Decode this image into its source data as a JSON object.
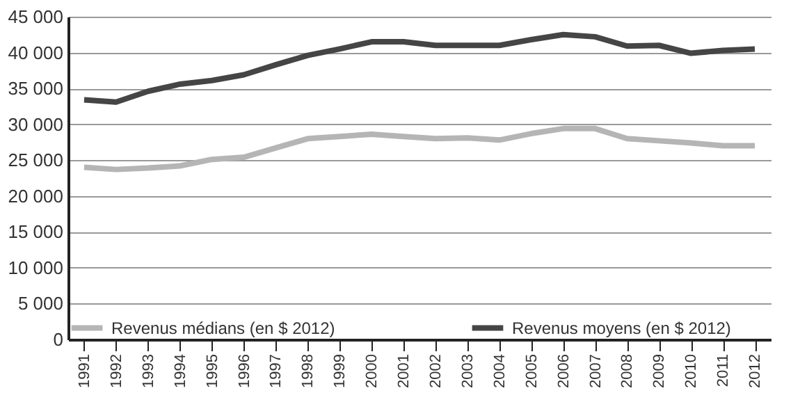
{
  "chart_data": {
    "type": "line",
    "categories": [
      "1991",
      "1992",
      "1993",
      "1994",
      "1995",
      "1996",
      "1997",
      "1998",
      "1999",
      "2000",
      "2001",
      "2002",
      "2003",
      "2004",
      "2005",
      "2006",
      "2007",
      "2008",
      "2009",
      "2010",
      "2011",
      "2012"
    ],
    "series": [
      {
        "name": "Revenus médians (en $ 2012)",
        "color": "#b5b5b5",
        "values": [
          24000,
          23700,
          23900,
          24200,
          25100,
          25400,
          26700,
          28000,
          28300,
          28600,
          28300,
          28000,
          28100,
          27800,
          28700,
          29400,
          29400,
          28000,
          27700,
          27400,
          27000,
          27000
        ]
      },
      {
        "name": "Revenus moyens (en $ 2012)",
        "color": "#454545",
        "values": [
          33400,
          33100,
          34600,
          35600,
          36100,
          36900,
          38300,
          39600,
          40500,
          41500,
          41500,
          41000,
          41000,
          41000,
          41800,
          42500,
          42200,
          40900,
          41000,
          39900,
          40300,
          40500
        ]
      }
    ],
    "ylim": [
      0,
      45000
    ],
    "yticks": [
      0,
      {
        "value": 5000,
        "label": "5 000"
      },
      {
        "value": 10000,
        "label": "10 000"
      },
      {
        "value": 15000,
        "label": "15 000"
      },
      {
        "value": 20000,
        "label": "20 000"
      },
      {
        "value": 25000,
        "label": "25 000"
      },
      {
        "value": 30000,
        "label": "30 000"
      },
      {
        "value": 35000,
        "label": "35 000"
      },
      {
        "value": 40000,
        "label": "40 000"
      },
      {
        "value": 45000,
        "label": "45 000"
      }
    ],
    "grid": "y",
    "legend": "bottom left",
    "line_style": "solid",
    "marker": "none"
  }
}
